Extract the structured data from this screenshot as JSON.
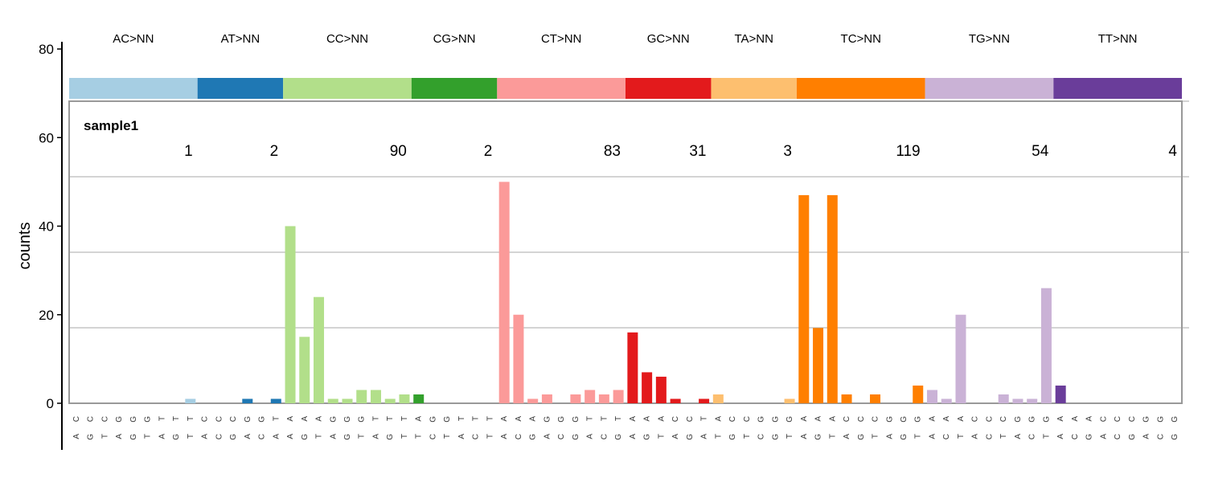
{
  "chart_data": {
    "type": "bar",
    "ylabel": "counts",
    "ylim": [
      0,
      80
    ],
    "yticks": [
      0,
      20,
      40,
      60,
      80
    ],
    "sample_label": "sample1",
    "groups": [
      {
        "name": "AC>NN",
        "color": "#A6CEE3",
        "total": "1",
        "categories": [
          "CA",
          "CG",
          "CT",
          "GA",
          "GG",
          "GT",
          "TA",
          "TG",
          "TT"
        ],
        "values": [
          0,
          0,
          0,
          0,
          0,
          0,
          0,
          0,
          1
        ]
      },
      {
        "name": "AT>NN",
        "color": "#1F78B4",
        "total": "2",
        "categories": [
          "CA",
          "CC",
          "CG",
          "GA",
          "GC",
          "TA"
        ],
        "values": [
          0,
          0,
          0,
          1,
          0,
          1
        ]
      },
      {
        "name": "CC>NN",
        "color": "#B2DF8A",
        "total": "90",
        "categories": [
          "AA",
          "AG",
          "AT",
          "GA",
          "GG",
          "GT",
          "TA",
          "TG",
          "TT"
        ],
        "values": [
          40,
          15,
          24,
          1,
          1,
          3,
          3,
          1,
          2
        ]
      },
      {
        "name": "CG>NN",
        "color": "#33A02C",
        "total": "2",
        "categories": [
          "AT",
          "GC",
          "GT",
          "TA",
          "TC",
          "TT"
        ],
        "values": [
          2,
          0,
          0,
          0,
          0,
          0
        ]
      },
      {
        "name": "CT>NN",
        "color": "#FB9A99",
        "total": "83",
        "categories": [
          "AA",
          "AC",
          "AG",
          "GA",
          "GC",
          "GG",
          "TA",
          "TC",
          "TG"
        ],
        "values": [
          50,
          20,
          1,
          2,
          0,
          2,
          3,
          2,
          3
        ]
      },
      {
        "name": "GC>NN",
        "color": "#E31A1C",
        "total": "31",
        "categories": [
          "AA",
          "AG",
          "AT",
          "CA",
          "CG",
          "TA"
        ],
        "values": [
          16,
          7,
          6,
          1,
          0,
          1
        ]
      },
      {
        "name": "TA>NN",
        "color": "#FDBF6F",
        "total": "3",
        "categories": [
          "AT",
          "CG",
          "CT",
          "GC",
          "GG",
          "GT"
        ],
        "values": [
          2,
          0,
          0,
          0,
          0,
          1
        ]
      },
      {
        "name": "TC>NN",
        "color": "#FF7F00",
        "total": "119",
        "categories": [
          "AA",
          "AG",
          "AT",
          "CA",
          "CG",
          "CT",
          "GA",
          "GG",
          "GT"
        ],
        "values": [
          47,
          17,
          47,
          2,
          0,
          2,
          0,
          0,
          4
        ]
      },
      {
        "name": "TG>NN",
        "color": "#CAB2D6",
        "total": "54",
        "categories": [
          "AA",
          "AC",
          "AT",
          "CA",
          "CC",
          "CT",
          "GA",
          "GC",
          "GT"
        ],
        "values": [
          3,
          1,
          20,
          0,
          0,
          2,
          1,
          1,
          26
        ]
      },
      {
        "name": "TT>NN",
        "color": "#6A3D9A",
        "total": "4",
        "categories": [
          "AA",
          "AC",
          "AG",
          "CA",
          "CC",
          "CG",
          "GA",
          "GC",
          "GG"
        ],
        "values": [
          4,
          0,
          0,
          0,
          0,
          0,
          0,
          0,
          0
        ]
      }
    ]
  }
}
